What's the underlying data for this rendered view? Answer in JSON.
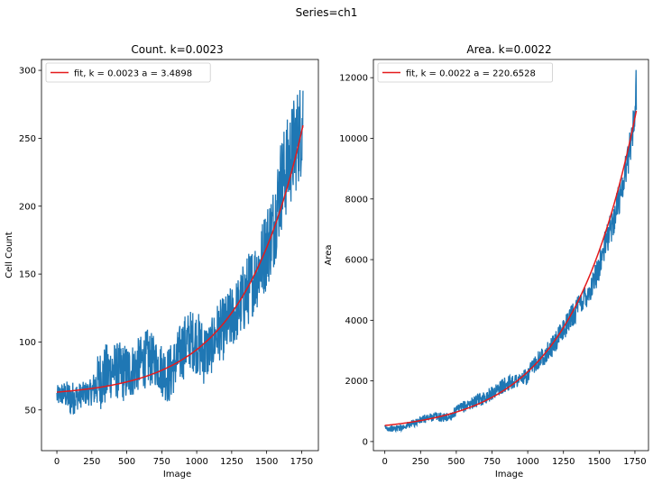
{
  "suptitle": "Series=ch1",
  "chart_data": [
    {
      "type": "line",
      "title": "Count. k=0.0023",
      "xlabel": "Image",
      "ylabel": "Cell Count",
      "xlim": [
        -110,
        1870
      ],
      "ylim": [
        20,
        308
      ],
      "xticks": [
        0,
        250,
        500,
        750,
        1000,
        1250,
        1500,
        1750
      ],
      "yticks": [
        50,
        100,
        150,
        200,
        250,
        300
      ],
      "legend": {
        "position": "upper-left",
        "label": "fit, k = 0.0023 a = 3.4898"
      },
      "series": [
        {
          "name": "Cell Count",
          "color": "#1f77b4",
          "x": [
            0,
            50,
            100,
            150,
            200,
            250,
            300,
            350,
            400,
            450,
            500,
            550,
            600,
            650,
            700,
            750,
            800,
            850,
            900,
            950,
            1000,
            1050,
            1100,
            1150,
            1200,
            1250,
            1300,
            1350,
            1400,
            1450,
            1500,
            1550,
            1600,
            1650,
            1700,
            1750,
            1760
          ],
          "y": [
            60,
            62,
            58,
            60,
            62,
            63,
            72,
            75,
            80,
            78,
            77,
            80,
            85,
            88,
            86,
            80,
            75,
            85,
            95,
            102,
            100,
            92,
            95,
            108,
            110,
            118,
            125,
            135,
            145,
            155,
            170,
            185,
            215,
            230,
            245,
            258,
            270
          ],
          "spread": [
            8,
            9,
            14,
            10,
            9,
            10,
            22,
            24,
            20,
            22,
            22,
            20,
            20,
            22,
            18,
            20,
            22,
            20,
            24,
            22,
            24,
            24,
            20,
            22,
            24,
            24,
            24,
            28,
            26,
            28,
            32,
            32,
            36,
            36,
            38,
            36,
            30
          ]
        },
        {
          "name": "fit, k = 0.0023 a = 3.4898",
          "color": "#e41a1c",
          "model": {
            "a": 3.4898,
            "k": 0.0023,
            "offset": 59.6
          },
          "x_range": [
            0,
            1760
          ]
        }
      ]
    },
    {
      "type": "line",
      "title": "Area. k=0.0022",
      "xlabel": "Image",
      "ylabel": "Area",
      "xlim": [
        -80,
        1845
      ],
      "ylim": [
        -300,
        12600
      ],
      "xticks": [
        0,
        250,
        500,
        750,
        1000,
        1250,
        1500,
        1750
      ],
      "yticks": [
        0,
        2000,
        4000,
        6000,
        8000,
        10000,
        12000
      ],
      "legend": {
        "position": "upper-left",
        "label": "fit, k = 0.0022 a = 220.6528"
      },
      "series": [
        {
          "name": "Area",
          "color": "#1f77b4",
          "x": [
            0,
            50,
            100,
            150,
            200,
            250,
            300,
            350,
            400,
            450,
            500,
            550,
            600,
            650,
            700,
            750,
            800,
            850,
            900,
            950,
            1000,
            1050,
            1100,
            1150,
            1200,
            1250,
            1300,
            1350,
            1400,
            1450,
            1500,
            1550,
            1600,
            1650,
            1700,
            1750,
            1760
          ],
          "y": [
            450,
            420,
            450,
            520,
            600,
            700,
            780,
            830,
            790,
            800,
            1000,
            1150,
            1250,
            1350,
            1450,
            1600,
            1750,
            1900,
            2000,
            2050,
            2150,
            2600,
            2800,
            3000,
            3300,
            3700,
            4100,
            4400,
            4800,
            5100,
            5800,
            6600,
            7300,
            8200,
            9300,
            10800,
            11700
          ],
          "spread": [
            100,
            100,
            110,
            120,
            130,
            140,
            150,
            150,
            150,
            160,
            180,
            190,
            200,
            210,
            220,
            230,
            240,
            250,
            260,
            260,
            280,
            300,
            320,
            340,
            360,
            380,
            400,
            420,
            440,
            460,
            480,
            500,
            520,
            560,
            600,
            700,
            800
          ]
        },
        {
          "name": "fit, k = 0.0022 a = 220.6528",
          "color": "#e41a1c",
          "model": {
            "a": 220.6528,
            "k": 0.0022,
            "offset": 309
          },
          "x_range": [
            0,
            1760
          ]
        }
      ]
    }
  ]
}
